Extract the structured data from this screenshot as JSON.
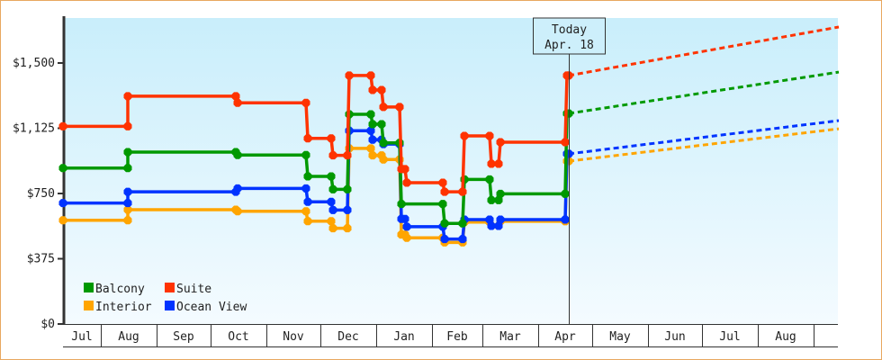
{
  "chart_data": {
    "type": "line",
    "title": "",
    "xlabel": "",
    "ylabel": "",
    "ylim": [
      0,
      1750
    ],
    "y_ticks": [
      "$0",
      "$375",
      "$750",
      "$1,125",
      "$1,500"
    ],
    "y_tick_values": [
      0,
      375,
      750,
      1125,
      1500
    ],
    "x_start": "Jul 11",
    "x_end": "Sep 15",
    "month_labels": [
      "Jul",
      "Aug",
      "Sep",
      "Oct",
      "Nov",
      "Dec",
      "Jan",
      "Feb",
      "Mar",
      "Apr",
      "May",
      "Jun",
      "Jul",
      "Aug"
    ],
    "grid": false,
    "legend_position": "bottom-left",
    "today": {
      "label": "Today",
      "date_label": "Apr. 18",
      "date": "Apr 18"
    },
    "series": [
      {
        "name": "Interior",
        "color": "#ffa500",
        "segments": [
          [
            "Jul 11",
            "Aug 16",
            596
          ],
          [
            "Aug 16",
            "Oct 15",
            657
          ],
          [
            "Oct 16",
            "Nov 23",
            648
          ],
          [
            "Nov 24",
            "Dec 7",
            591
          ],
          [
            "Dec 8",
            "Dec 16",
            550
          ],
          [
            "Dec 17",
            "Dec 29",
            1009
          ],
          [
            "Dec 30",
            "Jan 4",
            969
          ],
          [
            "Jan 5",
            "Jan 14",
            945
          ],
          [
            "Jan 15",
            "Jan 17",
            514
          ],
          [
            "Jan 18",
            "Feb 7",
            495
          ],
          [
            "Feb 8",
            "Feb 18",
            469
          ],
          [
            "Feb 19",
            "Mar 5",
            586
          ],
          [
            "Mar 6",
            "Mar 10",
            564
          ],
          [
            "Mar 11",
            "Apr 16",
            590
          ],
          [
            "Apr 17",
            "Apr 18",
            936
          ]
        ],
        "forecast": [
          [
            "Apr 18",
            936
          ],
          [
            "Sep 15",
            1122
          ]
        ]
      },
      {
        "name": "Ocean View",
        "color": "#0033ff",
        "segments": [
          [
            "Jul 11",
            "Aug 16",
            695
          ],
          [
            "Aug 16",
            "Oct 15",
            760
          ],
          [
            "Oct 16",
            "Nov 23",
            779
          ],
          [
            "Nov 24",
            "Dec 7",
            702
          ],
          [
            "Dec 8",
            "Dec 16",
            655
          ],
          [
            "Dec 17",
            "Dec 29",
            1111
          ],
          [
            "Dec 30",
            "Jan 4",
            1059
          ],
          [
            "Jan 5",
            "Jan 14",
            1034
          ],
          [
            "Jan 15",
            "Jan 17",
            604
          ],
          [
            "Jan 18",
            "Feb 7",
            559
          ],
          [
            "Feb 8",
            "Feb 18",
            488
          ],
          [
            "Feb 19",
            "Mar 5",
            600
          ],
          [
            "Mar 6",
            "Mar 10",
            564
          ],
          [
            "Mar 11",
            "Apr 16",
            600
          ],
          [
            "Apr 17",
            "Apr 18",
            978
          ]
        ],
        "forecast": [
          [
            "Apr 18",
            978
          ],
          [
            "Sep 15",
            1169
          ]
        ]
      },
      {
        "name": "Balcony",
        "color": "#009900",
        "segments": [
          [
            "Jul 11",
            "Aug 16",
            896
          ],
          [
            "Aug 16",
            "Oct 15",
            988
          ],
          [
            "Oct 16",
            "Nov 23",
            971
          ],
          [
            "Nov 24",
            "Dec 7",
            848
          ],
          [
            "Dec 8",
            "Dec 16",
            774
          ],
          [
            "Dec 17",
            "Dec 29",
            1205
          ],
          [
            "Dec 30",
            "Jan 4",
            1148
          ],
          [
            "Jan 5",
            "Jan 14",
            1041
          ],
          [
            "Jan 15",
            "Feb 7",
            690
          ],
          [
            "Feb 8",
            "Feb 18",
            578
          ],
          [
            "Feb 19",
            "Mar 5",
            831
          ],
          [
            "Mar 6",
            "Mar 10",
            712
          ],
          [
            "Mar 11",
            "Apr 16",
            748
          ],
          [
            "Apr 17",
            "Apr 18",
            1210
          ]
        ],
        "forecast": [
          [
            "Apr 18",
            1210
          ],
          [
            "Sep 15",
            1448
          ]
        ]
      },
      {
        "name": "Suite",
        "color": "#ff3300",
        "segments": [
          [
            "Jul 11",
            "Aug 16",
            1136
          ],
          [
            "Aug 16",
            "Oct 15",
            1309
          ],
          [
            "Oct 16",
            "Nov 23",
            1271
          ],
          [
            "Nov 24",
            "Dec 7",
            1067
          ],
          [
            "Dec 8",
            "Dec 16",
            969
          ],
          [
            "Dec 17",
            "Dec 29",
            1428
          ],
          [
            "Dec 30",
            "Jan 4",
            1345
          ],
          [
            "Jan 5",
            "Jan 14",
            1247
          ],
          [
            "Jan 15",
            "Jan 17",
            890
          ],
          [
            "Jan 18",
            "Feb 7",
            812
          ],
          [
            "Feb 8",
            "Feb 18",
            760
          ],
          [
            "Feb 19",
            "Mar 5",
            1081
          ],
          [
            "Mar 6",
            "Mar 10",
            921
          ],
          [
            "Mar 11",
            "Apr 16",
            1045
          ],
          [
            "Apr 17",
            "Apr 18",
            1428
          ]
        ],
        "forecast": [
          [
            "Apr 18",
            1428
          ],
          [
            "Sep 15",
            1707
          ]
        ]
      }
    ],
    "legend_order": [
      "Balcony",
      "Suite",
      "Interior",
      "Ocean View"
    ]
  }
}
